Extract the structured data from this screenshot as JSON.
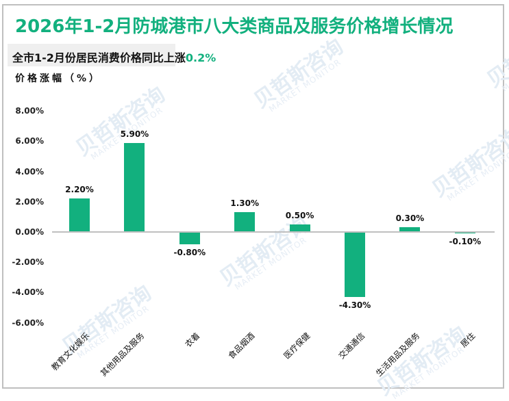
{
  "chart_data": {
    "type": "bar",
    "title": "2026年1-2月防城港市八大类商品及服务价格增长情况",
    "subtitle": "全市1-2月份居民消费价格同比上涨0.2%",
    "subtitle_prefix": "全市1-2月份居民消费价格同比上涨",
    "subtitle_highlight": "0.2%",
    "xlabel": "",
    "ylabel": "价格涨幅（%）",
    "ylim": [
      -6,
      8
    ],
    "yticks": [
      "8.00%",
      "6.00%",
      "4.00%",
      "2.00%",
      "0.00%",
      "-2.00%",
      "-4.00%",
      "-6.00%"
    ],
    "ytick_values": [
      8,
      6,
      4,
      2,
      0,
      -2,
      -4,
      -6
    ],
    "categories": [
      "教育文化娱乐",
      "其他用品及服务",
      "衣着",
      "食品烟酒",
      "医疗保健",
      "交通通信",
      "生活用品及服务",
      "居住"
    ],
    "values": [
      2.2,
      5.9,
      -0.8,
      1.3,
      0.5,
      -4.3,
      0.3,
      -0.1
    ],
    "value_labels": [
      "2.20%",
      "5.90%",
      "-0.80%",
      "1.30%",
      "0.50%",
      "-4.30%",
      "0.30%",
      "-0.10%"
    ],
    "grid": false,
    "legend": "none",
    "bar_color": "#12b07e",
    "title_color": "#12b07e"
  },
  "watermark": {
    "cn": "贝哲斯咨询",
    "en": "MARKET MONITOR"
  }
}
